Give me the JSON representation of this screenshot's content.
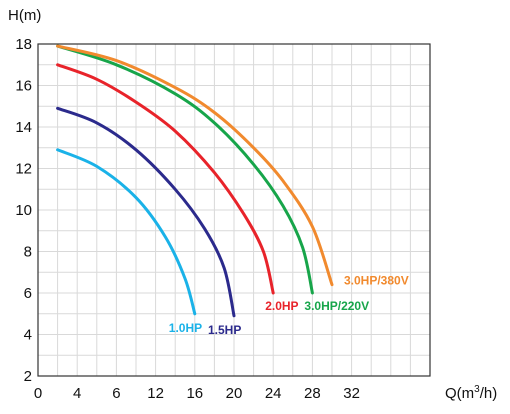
{
  "chart_data": {
    "type": "line",
    "title": "",
    "ylabel": "H(m)",
    "xlabel_prefix": "Q(m",
    "xlabel_sup": "3",
    "xlabel_suffix": "/h)",
    "xlim": [
      0,
      40
    ],
    "ylim": [
      2,
      18
    ],
    "x_ticks": [
      "0",
      "4",
      "6",
      "12",
      "16",
      "20",
      "24",
      "28",
      "32"
    ],
    "y_ticks": [
      "2",
      "4",
      "6",
      "8",
      "10",
      "12",
      "14",
      "16",
      "18"
    ],
    "grid": true,
    "series": [
      {
        "name": "1.0HP",
        "color": "#1ab2e8",
        "x": [
          2,
          6,
          10,
          13,
          15,
          16
        ],
        "y": [
          12.9,
          12.1,
          10.6,
          8.7,
          6.7,
          5.0
        ]
      },
      {
        "name": "1.5HP",
        "color": "#2b2a8c",
        "x": [
          2,
          6,
          10,
          14,
          17,
          19,
          20
        ],
        "y": [
          14.9,
          14.2,
          12.9,
          11.0,
          9.1,
          7.2,
          4.9
        ]
      },
      {
        "name": "2.0HP",
        "color": "#e8232a",
        "x": [
          2,
          6,
          10,
          14,
          18,
          21,
          23,
          24
        ],
        "y": [
          17.0,
          16.3,
          15.2,
          13.8,
          11.8,
          9.8,
          8.0,
          6.0
        ]
      },
      {
        "name": "3.0HP/220V",
        "color": "#17a54a",
        "x": [
          2,
          8,
          14,
          18,
          22,
          25,
          27,
          28
        ],
        "y": [
          17.9,
          17.0,
          15.6,
          14.2,
          12.2,
          10.2,
          8.2,
          6.0
        ]
      },
      {
        "name": "3.0HP/380V",
        "color": "#f18a2e",
        "x": [
          2,
          8,
          14,
          18,
          22,
          25,
          28,
          30
        ],
        "y": [
          17.9,
          17.2,
          15.9,
          14.7,
          13.0,
          11.4,
          9.2,
          6.4
        ]
      }
    ]
  }
}
